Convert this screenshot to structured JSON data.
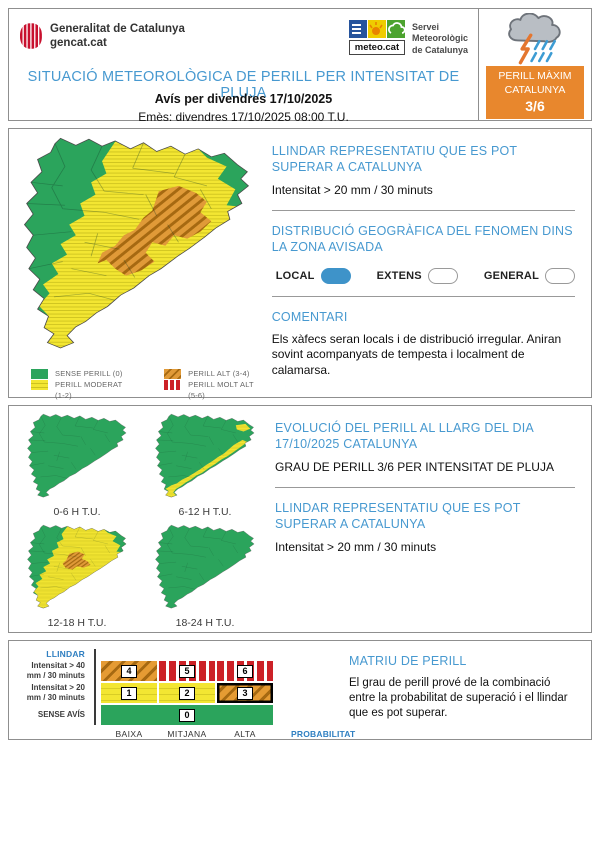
{
  "colors": {
    "accent_blue": "#4799D0",
    "toggle_blue": "#3E93C9",
    "orange": "#E8872D",
    "green": "#2BA45C",
    "yellow": "#F3E632",
    "map_orange": "#E09A38",
    "red": "#CC2127"
  },
  "header": {
    "gencat_line1": "Generalitat de Catalunya",
    "gencat_line2": "gencat.cat",
    "meteocat_box": "meteo.cat",
    "meteocat_name": [
      "Servei",
      "Meteorològic",
      "de Catalunya"
    ],
    "title": "SITUACIÓ METEOROLÒGICA DE PERILL PER INTENSITAT DE PLUJA",
    "subtitle": "Avís per divendres 17/10/2025",
    "issued": "Emès: divendres 17/10/2025 08:00 T.U.",
    "max_danger": {
      "line1": "PERILL MÀXIM",
      "line2": "CATALUNYA",
      "value": "3/6"
    }
  },
  "panel_threshold": {
    "threshold_title": "LLINDAR REPRESENTATIU QUE ES POT SUPERAR A CATALUNYA",
    "threshold_value": "Intensitat > 20 mm / 30 minuts",
    "distribution_title": "DISTRIBUCIÓ GEOGRÀFICA DEL FENOMEN DINS LA ZONA AVISADA",
    "distribution_options": [
      {
        "label": "LOCAL",
        "selected": true
      },
      {
        "label": "EXTENS",
        "selected": false
      },
      {
        "label": "GENERAL",
        "selected": false
      }
    ],
    "comment_title": "COMENTARI",
    "comment_text": "Els xàfecs seran locals i de distribució irregular. Aniran sovint acompanyats de tempesta i localment de calamarsa."
  },
  "legend": {
    "groups": [
      {
        "items": [
          {
            "label": "SENSE PERILL (0)",
            "style": "green"
          },
          {
            "label": "PERILL MODERAT (1-2)",
            "style": "yellow"
          }
        ]
      },
      {
        "items": [
          {
            "label": "PERILL ALT (3-4)",
            "style": "orange"
          },
          {
            "label": "PERILL MOLT ALT (5-6)",
            "style": "red"
          }
        ]
      }
    ]
  },
  "main_map": {
    "layers": [
      "base-green",
      "yellow-main",
      "ne-green",
      "orange-main"
    ]
  },
  "panel_evolution": {
    "title": "EVOLUCIÓ DEL PERILL AL LLARG DEL DIA 17/10/2025 CATALUNYA",
    "grade": "GRAU DE PERILL 3/6 PER INTENSITAT DE PLUJA",
    "threshold_title": "LLINDAR REPRESENTATIU QUE ES POT SUPERAR A CATALUNYA",
    "threshold_value": "Intensitat > 20 mm / 30 minuts",
    "maps": [
      {
        "label": "0-6 H T.U.",
        "layers": [
          "base-green"
        ]
      },
      {
        "label": "6-12 H T.U.",
        "layers": [
          "base-green",
          "yellow-coast"
        ]
      },
      {
        "label": "12-18 H T.U.",
        "layers": [
          "base-green",
          "yellow-main",
          "ne-green",
          "orange-small"
        ]
      },
      {
        "label": "18-24 H T.U.",
        "layers": [
          "base-green"
        ]
      }
    ]
  },
  "panel_matrix": {
    "title": "MATRIU DE PERILL",
    "text": "El grau de perill prové de la combinació entre la probabilitat de superació i el llindar que es pot superar.",
    "y_axis_label": "LLINDAR",
    "x_axis_label": "PROBABILITAT",
    "col_labels": [
      "BAIXA",
      "MITJANA",
      "ALTA"
    ],
    "rows": [
      {
        "label": [
          "Intensitat > 40",
          "mm / 30 minuts"
        ],
        "cells": [
          {
            "value": "4",
            "style": "orange"
          },
          {
            "value": "5",
            "style": "red"
          },
          {
            "value": "6",
            "style": "red"
          }
        ]
      },
      {
        "label": [
          "Intensitat > 20",
          "mm / 30 minuts"
        ],
        "cells": [
          {
            "value": "1",
            "style": "yellow"
          },
          {
            "value": "2",
            "style": "yellow"
          },
          {
            "value": "3",
            "style": "orange",
            "selected": true
          }
        ]
      },
      {
        "label": [
          "SENSE AVÍS"
        ],
        "cells": [
          {
            "value": "0",
            "style": "green",
            "span": 3
          }
        ]
      }
    ]
  }
}
